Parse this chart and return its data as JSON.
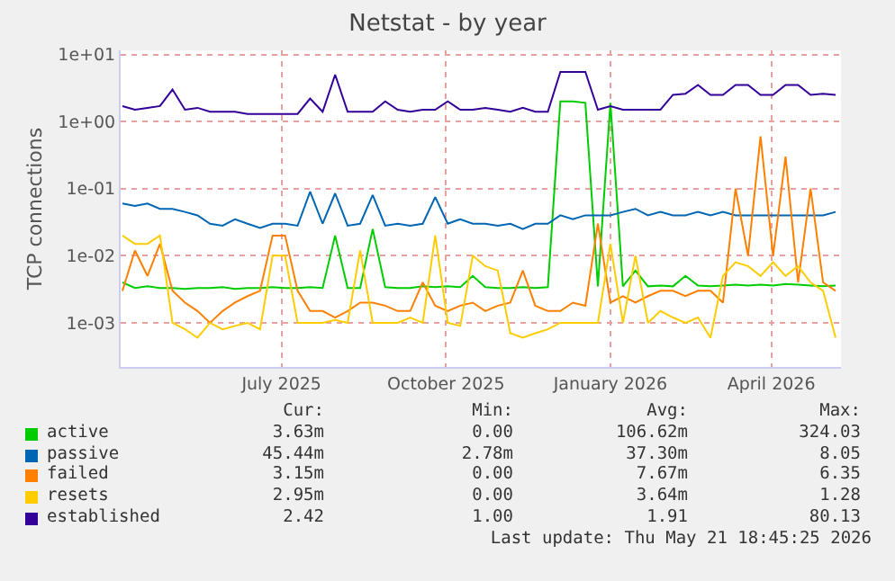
{
  "chart_data": {
    "type": "line",
    "title": "Netstat - by year",
    "ylabel": "TCP connections",
    "log": "y",
    "grid": true,
    "legend": "bottom",
    "marker": "none",
    "line_style": "solid",
    "x": [
      "2025-04-03",
      "2025-04-10",
      "2025-04-17",
      "2025-04-24",
      "2025-05-01",
      "2025-05-08",
      "2025-05-15",
      "2025-05-22",
      "2025-05-29",
      "2025-06-05",
      "2025-06-12",
      "2025-06-19",
      "2025-06-26",
      "2025-07-03",
      "2025-07-10",
      "2025-07-17",
      "2025-07-24",
      "2025-07-31",
      "2025-08-07",
      "2025-08-14",
      "2025-08-21",
      "2025-08-28",
      "2025-09-04",
      "2025-09-11",
      "2025-09-18",
      "2025-09-25",
      "2025-10-02",
      "2025-10-09",
      "2025-10-16",
      "2025-10-23",
      "2025-10-30",
      "2025-11-06",
      "2025-11-13",
      "2025-11-20",
      "2025-11-27",
      "2025-12-04",
      "2025-12-11",
      "2025-12-18",
      "2025-12-25",
      "2026-01-01",
      "2026-01-08",
      "2026-01-15",
      "2026-01-22",
      "2026-01-29",
      "2026-02-05",
      "2026-02-12",
      "2026-02-19",
      "2026-02-26",
      "2026-03-05",
      "2026-03-12",
      "2026-03-19",
      "2026-03-26",
      "2026-04-02",
      "2026-04-09",
      "2026-04-16",
      "2026-04-23",
      "2026-04-30",
      "2026-05-07"
    ],
    "xlim": [
      "2025-04-02",
      "2026-05-10"
    ],
    "xticks": [
      {
        "value": "2025-07-01",
        "label": "July 2025"
      },
      {
        "value": "2025-10-01",
        "label": "October 2025"
      },
      {
        "value": "2026-01-01",
        "label": "January 2026"
      },
      {
        "value": "2026-04-01",
        "label": "April 2026"
      }
    ],
    "ylim": [
      0.00022,
      11.5
    ],
    "yticks": [
      {
        "value": 0.001,
        "label": "1e-03"
      },
      {
        "value": 0.01,
        "label": "1e-02"
      },
      {
        "value": 0.1,
        "label": "1e-01"
      },
      {
        "value": 1,
        "label": "1e+00"
      },
      {
        "value": 10,
        "label": "1e+01"
      }
    ],
    "series": [
      {
        "name": "active",
        "color": "#00cc00",
        "values": [
          0.004,
          0.0033,
          0.0035,
          0.0033,
          0.0033,
          0.0032,
          0.0033,
          0.0033,
          0.0034,
          0.0032,
          0.0033,
          0.0033,
          0.0034,
          0.0033,
          0.0033,
          0.0034,
          0.0033,
          0.02,
          0.0033,
          0.0033,
          0.025,
          0.0034,
          0.0033,
          0.0033,
          0.0035,
          0.0034,
          0.0035,
          0.0034,
          0.005,
          0.0034,
          0.0033,
          0.0033,
          0.0034,
          0.0033,
          0.0034,
          2.0,
          2.0,
          1.9,
          0.0035,
          1.9,
          0.0035,
          0.006,
          0.0035,
          0.0036,
          0.0035,
          0.005,
          0.0036,
          0.0035,
          0.0036,
          0.0037,
          0.0036,
          0.0037,
          0.0036,
          0.0038,
          0.0037,
          0.0036,
          0.0035,
          0.0036
        ]
      },
      {
        "name": "passive",
        "color": "#0066b3",
        "values": [
          0.06,
          0.055,
          0.06,
          0.05,
          0.05,
          0.045,
          0.04,
          0.03,
          0.028,
          0.035,
          0.03,
          0.026,
          0.03,
          0.03,
          0.028,
          0.09,
          0.03,
          0.085,
          0.028,
          0.03,
          0.08,
          0.028,
          0.03,
          0.028,
          0.03,
          0.075,
          0.03,
          0.035,
          0.03,
          0.03,
          0.028,
          0.03,
          0.025,
          0.03,
          0.03,
          0.04,
          0.035,
          0.04,
          0.04,
          0.04,
          0.045,
          0.05,
          0.04,
          0.045,
          0.04,
          0.04,
          0.045,
          0.04,
          0.045,
          0.04,
          0.04,
          0.04,
          0.04,
          0.04,
          0.04,
          0.04,
          0.04,
          0.045
        ]
      },
      {
        "name": "failed",
        "color": "#ff8000",
        "values": [
          0.003,
          0.012,
          0.005,
          0.015,
          0.003,
          0.002,
          0.0015,
          0.001,
          0.0015,
          0.002,
          0.0025,
          0.003,
          0.02,
          0.02,
          0.003,
          0.0015,
          0.0015,
          0.0012,
          0.0015,
          0.002,
          0.002,
          0.0018,
          0.0015,
          0.0015,
          0.004,
          0.0018,
          0.0015,
          0.0018,
          0.002,
          0.0015,
          0.0018,
          0.002,
          0.006,
          0.0018,
          0.0015,
          0.0015,
          0.002,
          0.0018,
          0.03,
          0.002,
          0.0025,
          0.002,
          0.0025,
          0.003,
          0.003,
          0.0025,
          0.003,
          0.003,
          0.002,
          0.1,
          0.01,
          0.6,
          0.01,
          0.3,
          0.004,
          0.1,
          0.004,
          0.003
        ]
      },
      {
        "name": "resets",
        "color": "#ffcc00",
        "values": [
          0.02,
          0.015,
          0.015,
          0.02,
          0.001,
          0.0008,
          0.0006,
          0.001,
          0.0008,
          0.0009,
          0.001,
          0.0008,
          0.01,
          0.01,
          0.001,
          0.001,
          0.001,
          0.0011,
          0.001,
          0.012,
          0.001,
          0.001,
          0.001,
          0.0012,
          0.001,
          0.02,
          0.001,
          0.0009,
          0.01,
          0.007,
          0.006,
          0.0007,
          0.0006,
          0.0007,
          0.0008,
          0.001,
          0.001,
          0.001,
          0.001,
          0.015,
          0.001,
          0.01,
          0.001,
          0.0015,
          0.0012,
          0.001,
          0.0012,
          0.0006,
          0.005,
          0.008,
          0.007,
          0.005,
          0.008,
          0.005,
          0.007,
          0.004,
          0.003,
          0.0006
        ]
      },
      {
        "name": "established",
        "color": "#330099",
        "values": [
          1.7,
          1.5,
          1.6,
          1.7,
          3.0,
          1.5,
          1.6,
          1.4,
          1.4,
          1.4,
          1.3,
          1.3,
          1.3,
          1.3,
          1.3,
          2.2,
          1.4,
          5.0,
          1.4,
          1.4,
          1.4,
          2.0,
          1.5,
          1.4,
          1.5,
          1.5,
          2.0,
          1.5,
          1.5,
          1.6,
          1.5,
          1.4,
          1.6,
          1.4,
          1.4,
          5.5,
          5.5,
          5.5,
          1.5,
          1.7,
          1.5,
          1.5,
          1.5,
          1.5,
          2.5,
          2.6,
          3.5,
          2.5,
          2.5,
          3.5,
          3.5,
          2.5,
          2.5,
          3.5,
          3.5,
          2.5,
          2.6,
          2.5
        ]
      }
    ],
    "annotations": [
      "Cur:",
      "Min:",
      "Avg:",
      "Max:",
      "3.63m",
      "0.00",
      "106.62m",
      "324.03",
      "45.44m",
      "2.78m",
      "37.30m",
      "8.05",
      "3.15m",
      "0.00",
      "7.67m",
      "6.35",
      "2.95m",
      "0.00",
      "3.64m",
      "1.28",
      "2.42",
      "1.00",
      "1.91",
      "80.13",
      "Last update: Thu May 21 18:45:25 2026"
    ]
  }
}
